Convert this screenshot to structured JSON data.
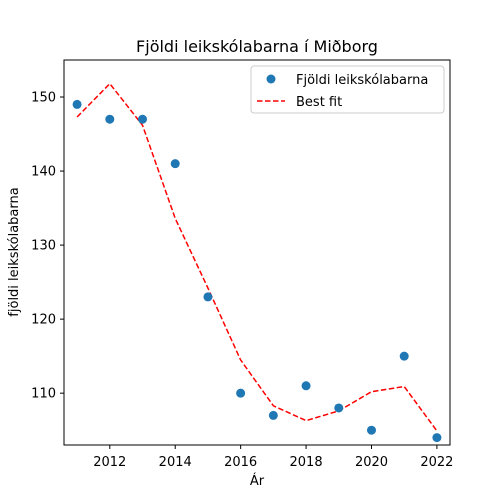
{
  "chart_data": {
    "type": "scatter",
    "title": "Fjöldi leikskólabarna í Miðborg",
    "xlabel": "Ár",
    "ylabel": "fjöldi leikskólabarna",
    "xlim": [
      2010.6,
      2022.4
    ],
    "ylim": [
      103,
      155
    ],
    "xticks": [
      2012,
      2014,
      2016,
      2018,
      2020,
      2022
    ],
    "yticks": [
      110,
      120,
      130,
      140,
      150
    ],
    "grid": false,
    "legend_position": "top-right",
    "series": [
      {
        "name": "Fjöldi leikskólabarna",
        "kind": "scatter",
        "color": "#1f77b4",
        "x": [
          2011,
          2012,
          2013,
          2014,
          2015,
          2016,
          2017,
          2018,
          2019,
          2020,
          2021,
          2022
        ],
        "y": [
          149,
          147,
          147,
          141,
          123,
          110,
          107,
          111,
          108,
          105,
          115,
          104
        ]
      },
      {
        "name": "Best fit",
        "kind": "line",
        "style": "dashed",
        "color": "#ff0000",
        "x": [
          2011,
          2012,
          2013,
          2014,
          2015,
          2016,
          2017,
          2018,
          2019,
          2020,
          2021,
          2022
        ],
        "y": [
          147.3,
          151.8,
          146.2,
          133.6,
          124.2,
          114.5,
          108.3,
          106.3,
          107.6,
          110.2,
          110.9,
          104.9
        ]
      }
    ]
  }
}
